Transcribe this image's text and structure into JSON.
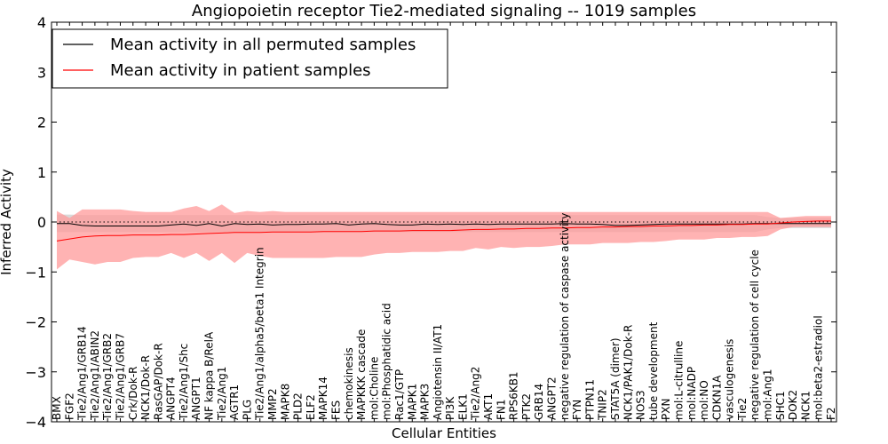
{
  "chart_data": {
    "type": "line",
    "title": "Angiopoietin receptor Tie2-mediated signaling -- 1019 samples",
    "xlabel": "Cellular Entities",
    "ylabel": "Inferred Activity",
    "ylim": [
      -4,
      4
    ],
    "yticks": [
      4,
      3,
      2,
      1,
      0,
      -1,
      -2,
      -3,
      -4
    ],
    "ytick_labels": [
      "4",
      "3",
      "2",
      "1",
      "0",
      "−1",
      "−2",
      "−3",
      "−4"
    ],
    "zero_line": "dotted",
    "legend_position": "top-left",
    "colors": {
      "permuted_line": "#000000",
      "patient_line": "#ff0000",
      "patient_band": "#ff9999",
      "permuted_band": "#aaaaaa"
    },
    "categories": [
      "BMX",
      "FGF2",
      "Tie2/Ang1/GRB14",
      "Tie2/Ang1/ABIN2",
      "Tie2/Ang1/GRB2",
      "Tie2/Ang1/GRB7",
      "Crk/Dok-R",
      "NCK1/Dok-R",
      "RasGAP/Dok-R",
      "ANGPT4",
      "Tie2/Ang1/Shc",
      "ANGPT1",
      "NF kappa B/RelA",
      "Tie2/Ang1",
      "AGTR1",
      "PLG",
      "Tie2/Ang1/alpha5/beta1 Integrin",
      "MMP2",
      "MAPK8",
      "PLD2",
      "ELF2",
      "MAPK14",
      "FES",
      "chemokinesis",
      "MAPKKK cascade",
      "mol:Choline",
      "mol:Phosphatidic acid",
      "Rac1/GTP",
      "MAPK1",
      "MAPK3",
      "Angiotensin II/AT1",
      "PI3K",
      "ELK1",
      "Tie2/Ang2",
      "AKT1",
      "FN1",
      "RPS6KB1",
      "PTK2",
      "GRB14",
      "ANGPT2",
      "negative regulation of caspase activity",
      "FYN",
      "PTPN11",
      "TNIP2",
      "STAT5A (dimer)",
      "NCK1/PAK1/Dok-R",
      "NOS3",
      "tube development",
      "PXN",
      "mol:L-citrulline",
      "mol:NADP",
      "mol:NO",
      "CDKN1A",
      "vasculogenesis",
      "Tie2",
      "negative regulation of cell cycle",
      "mol:Ang1",
      "SHC1",
      "DOK2",
      "NCK1",
      "mol:beta2-estradiol",
      "F2"
    ],
    "series": [
      {
        "name": "Mean activity in all permuted samples",
        "values": [
          -0.03,
          -0.03,
          -0.07,
          -0.08,
          -0.08,
          -0.08,
          -0.08,
          -0.08,
          -0.08,
          -0.06,
          -0.04,
          -0.07,
          -0.03,
          -0.08,
          -0.03,
          -0.05,
          -0.04,
          -0.06,
          -0.05,
          -0.05,
          -0.04,
          -0.04,
          -0.03,
          -0.06,
          -0.04,
          -0.03,
          -0.05,
          -0.06,
          -0.06,
          -0.04,
          -0.05,
          -0.04,
          -0.05,
          -0.04,
          -0.05,
          -0.04,
          -0.04,
          -0.04,
          -0.04,
          -0.04,
          -0.03,
          -0.04,
          -0.04,
          -0.05,
          -0.07,
          -0.07,
          -0.06,
          -0.05,
          -0.04,
          -0.04,
          -0.04,
          -0.04,
          -0.04,
          -0.04,
          -0.04,
          -0.03,
          -0.03,
          -0.03,
          -0.03,
          -0.03,
          -0.03,
          -0.03
        ],
        "lower": [
          -0.2,
          -0.2,
          -0.2,
          -0.2,
          -0.2,
          -0.2,
          -0.2,
          -0.2,
          -0.2,
          -0.2,
          -0.2,
          -0.2,
          -0.2,
          -0.2,
          -0.2,
          -0.2,
          -0.2,
          -0.2,
          -0.2,
          -0.2,
          -0.2,
          -0.2,
          -0.2,
          -0.2,
          -0.2,
          -0.2,
          -0.2,
          -0.2,
          -0.2,
          -0.2,
          -0.2,
          -0.2,
          -0.2,
          -0.2,
          -0.2,
          -0.2,
          -0.2,
          -0.2,
          -0.2,
          -0.2,
          -0.2,
          -0.2,
          -0.2,
          -0.2,
          -0.2,
          -0.2,
          -0.2,
          -0.2,
          -0.2,
          -0.2,
          -0.2,
          -0.2,
          -0.2,
          -0.2,
          -0.2,
          -0.2,
          -0.15,
          -0.12,
          -0.12,
          -0.12,
          -0.12,
          -0.12
        ],
        "upper": [
          0.15,
          0.15,
          0.14,
          0.14,
          0.14,
          0.14,
          0.14,
          0.14,
          0.14,
          0.14,
          0.14,
          0.14,
          0.14,
          0.14,
          0.14,
          0.14,
          0.14,
          0.14,
          0.14,
          0.14,
          0.14,
          0.14,
          0.14,
          0.14,
          0.14,
          0.14,
          0.14,
          0.14,
          0.14,
          0.14,
          0.14,
          0.14,
          0.14,
          0.14,
          0.14,
          0.14,
          0.14,
          0.14,
          0.14,
          0.14,
          0.14,
          0.14,
          0.14,
          0.14,
          0.14,
          0.14,
          0.14,
          0.14,
          0.14,
          0.14,
          0.14,
          0.14,
          0.14,
          0.14,
          0.14,
          0.14,
          0.1,
          0.08,
          0.08,
          0.08,
          0.08,
          0.08
        ]
      },
      {
        "name": "Mean activity in patient samples",
        "values": [
          -0.38,
          -0.34,
          -0.3,
          -0.28,
          -0.27,
          -0.27,
          -0.26,
          -0.26,
          -0.26,
          -0.25,
          -0.25,
          -0.24,
          -0.23,
          -0.22,
          -0.21,
          -0.21,
          -0.21,
          -0.2,
          -0.2,
          -0.2,
          -0.2,
          -0.19,
          -0.19,
          -0.19,
          -0.19,
          -0.18,
          -0.18,
          -0.18,
          -0.17,
          -0.17,
          -0.17,
          -0.17,
          -0.16,
          -0.15,
          -0.15,
          -0.14,
          -0.14,
          -0.13,
          -0.13,
          -0.12,
          -0.12,
          -0.11,
          -0.11,
          -0.1,
          -0.1,
          -0.09,
          -0.09,
          -0.08,
          -0.08,
          -0.07,
          -0.07,
          -0.06,
          -0.06,
          -0.05,
          -0.05,
          -0.04,
          -0.04,
          -0.02,
          0.0,
          0.01,
          0.02,
          0.02
        ],
        "lower": [
          -0.95,
          -0.75,
          -0.8,
          -0.85,
          -0.8,
          -0.8,
          -0.72,
          -0.7,
          -0.7,
          -0.62,
          -0.72,
          -0.62,
          -0.78,
          -0.62,
          -0.82,
          -0.62,
          -0.68,
          -0.72,
          -0.72,
          -0.72,
          -0.72,
          -0.72,
          -0.7,
          -0.7,
          -0.7,
          -0.65,
          -0.62,
          -0.62,
          -0.6,
          -0.6,
          -0.6,
          -0.58,
          -0.58,
          -0.52,
          -0.55,
          -0.5,
          -0.52,
          -0.5,
          -0.5,
          -0.48,
          -0.45,
          -0.45,
          -0.45,
          -0.42,
          -0.42,
          -0.42,
          -0.4,
          -0.4,
          -0.38,
          -0.35,
          -0.35,
          -0.35,
          -0.32,
          -0.32,
          -0.3,
          -0.3,
          -0.28,
          -0.15,
          -0.1,
          -0.1,
          -0.1,
          -0.1
        ],
        "upper": [
          0.22,
          0.08,
          0.25,
          0.25,
          0.25,
          0.25,
          0.22,
          0.2,
          0.2,
          0.2,
          0.27,
          0.32,
          0.22,
          0.35,
          0.18,
          0.22,
          0.2,
          0.22,
          0.2,
          0.2,
          0.2,
          0.2,
          0.2,
          0.2,
          0.2,
          0.2,
          0.2,
          0.2,
          0.2,
          0.2,
          0.2,
          0.2,
          0.2,
          0.2,
          0.2,
          0.2,
          0.2,
          0.2,
          0.2,
          0.2,
          0.2,
          0.2,
          0.2,
          0.2,
          0.2,
          0.2,
          0.2,
          0.2,
          0.2,
          0.2,
          0.2,
          0.2,
          0.2,
          0.2,
          0.2,
          0.2,
          0.2,
          0.08,
          0.1,
          0.12,
          0.12,
          0.12
        ]
      }
    ]
  }
}
